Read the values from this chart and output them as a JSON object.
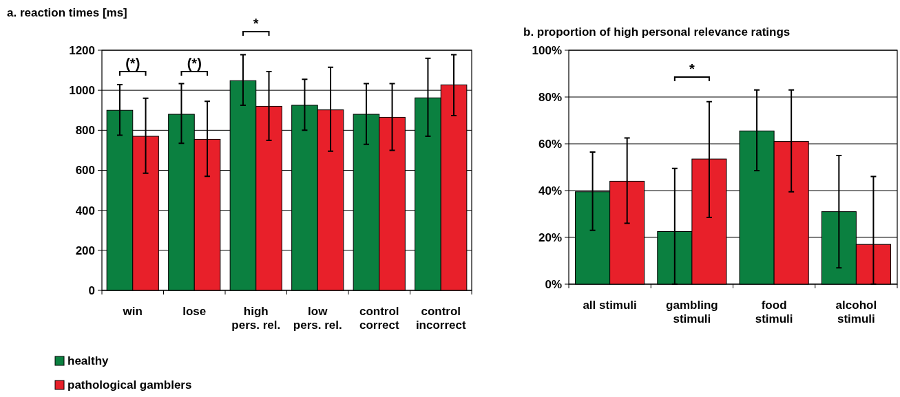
{
  "chart_data": [
    {
      "type": "bar",
      "title": "a. reaction times [ms]",
      "categories": [
        "win",
        "lose",
        "high\npers. rel.",
        "low\npers. rel.",
        "control\ncorrect",
        "control\nincorrect"
      ],
      "series": [
        {
          "name": "healthy",
          "color": "#0b8040",
          "values": [
            900,
            880,
            1048,
            925,
            880,
            962
          ],
          "errors": [
            [
              775,
              1028
            ],
            [
              735,
              1033
            ],
            [
              925,
              1178
            ],
            [
              800,
              1055
            ],
            [
              730,
              1033
            ],
            [
              770,
              1160
            ]
          ]
        },
        {
          "name": "pathological gamblers",
          "color": "#e8202a",
          "values": [
            770,
            755,
            920,
            902,
            865,
            1027
          ],
          "errors": [
            [
              585,
              960
            ],
            [
              570,
              945
            ],
            [
              750,
              1093
            ],
            [
              695,
              1115
            ],
            [
              700,
              1033
            ],
            [
              873,
              1178
            ]
          ]
        }
      ],
      "ylim": [
        0,
        1200
      ],
      "yticks": [
        0,
        200,
        400,
        600,
        800,
        1000,
        1200
      ],
      "grid": "y",
      "legend": "bottom",
      "annotations": [
        "(*)",
        "(*)",
        "*"
      ]
    },
    {
      "type": "bar",
      "title": "b. proportion of high personal relevance ratings",
      "categories": [
        "all stimuli",
        "gambling\nstimuli",
        "food\nstimuli",
        "alcohol\nstimuli"
      ],
      "series": [
        {
          "color": "#0b8040",
          "values": [
            39.5,
            22.5,
            65.5,
            31
          ],
          "errors": [
            [
              23,
              56.5
            ],
            [
              0,
              49.5
            ],
            [
              48.5,
              83
            ],
            [
              7,
              55
            ]
          ]
        },
        {
          "color": "#e8202a",
          "values": [
            44,
            53.5,
            61,
            17
          ],
          "errors": [
            [
              26,
              62.5
            ],
            [
              28.5,
              78
            ],
            [
              39.5,
              83
            ],
            [
              0,
              46
            ]
          ]
        }
      ],
      "ylim": [
        0,
        100
      ],
      "yticks": [
        {
          "value": 0,
          "label": "0%"
        },
        {
          "value": 20,
          "label": "20%"
        },
        {
          "value": 40,
          "label": "40%"
        },
        {
          "value": 60,
          "label": "60%"
        },
        {
          "value": 80,
          "label": "80%"
        },
        {
          "value": 100,
          "label": "100%"
        }
      ],
      "grid": "y",
      "annotations": [
        "*"
      ]
    }
  ]
}
